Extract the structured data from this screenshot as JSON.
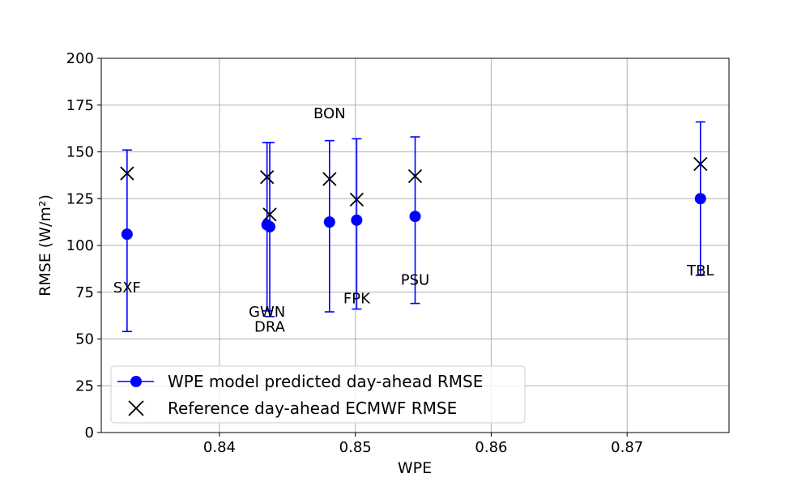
{
  "chart_data": {
    "type": "scatter",
    "title": "",
    "xlabel": "WPE",
    "ylabel": "RMSE",
    "ylabel_unit": "(W/m²)",
    "xlim": [
      0.8313,
      0.8775
    ],
    "ylim": [
      0,
      200
    ],
    "x_ticks": [
      0.84,
      0.85,
      0.86,
      0.87
    ],
    "x_tick_labels": [
      "0.84",
      "0.85",
      "0.86",
      "0.87"
    ],
    "y_ticks": [
      0,
      25,
      50,
      75,
      100,
      125,
      150,
      175,
      200
    ],
    "grid": true,
    "legend_position": "lower-left",
    "colors": {
      "predicted": "#0000ff",
      "reference": "#000000",
      "grid": "#b0b0b0"
    },
    "series": [
      {
        "name": "WPE model predicted day-ahead RMSE",
        "marker": "circle",
        "points": [
          {
            "x": 0.8332,
            "y": 106,
            "err_low": 54,
            "err_high": 151
          },
          {
            "x": 0.8435,
            "y": 111,
            "err_low": 65,
            "err_high": 155
          },
          {
            "x": 0.8437,
            "y": 110,
            "err_low": 62,
            "err_high": 155
          },
          {
            "x": 0.8481,
            "y": 112.5,
            "err_low": 64.5,
            "err_high": 156
          },
          {
            "x": 0.8501,
            "y": 113.5,
            "err_low": 66,
            "err_high": 157
          },
          {
            "x": 0.8544,
            "y": 115.5,
            "err_low": 69,
            "err_high": 158
          },
          {
            "x": 0.8754,
            "y": 125,
            "err_low": 84,
            "err_high": 166
          }
        ]
      },
      {
        "name": "Reference day-ahead ECMWF RMSE",
        "marker": "x",
        "points": [
          {
            "x": 0.8332,
            "y": 138.5
          },
          {
            "x": 0.8435,
            "y": 136.5
          },
          {
            "x": 0.8437,
            "y": 116.5
          },
          {
            "x": 0.8481,
            "y": 135.5
          },
          {
            "x": 0.8501,
            "y": 124.5
          },
          {
            "x": 0.8544,
            "y": 137
          },
          {
            "x": 0.8754,
            "y": 143.5
          }
        ]
      }
    ],
    "annotations": [
      {
        "text": "SXF",
        "x": 0.8332,
        "y": 75
      },
      {
        "text": "GWN",
        "x": 0.8435,
        "y": 62
      },
      {
        "text": "DRA",
        "x": 0.8437,
        "y": 54
      },
      {
        "text": "BON",
        "x": 0.8481,
        "y": 168
      },
      {
        "text": "FPK",
        "x": 0.8501,
        "y": 69
      },
      {
        "text": "PSU",
        "x": 0.8544,
        "y": 79
      },
      {
        "text": "TBL",
        "x": 0.8754,
        "y": 84
      }
    ]
  }
}
